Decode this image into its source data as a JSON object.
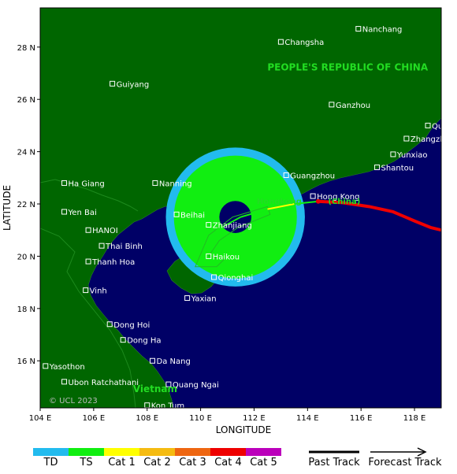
{
  "map": {
    "lon_range": [
      104,
      119
    ],
    "lat_range": [
      14.2,
      29.5
    ],
    "x_ticks": [
      104,
      106,
      108,
      110,
      112,
      114,
      116,
      118
    ],
    "y_ticks": [
      16,
      18,
      20,
      22,
      24,
      26,
      28
    ],
    "x_tick_labels": [
      "104 E",
      "106 E",
      "108 E",
      "110 E",
      "112 E",
      "114 E",
      "116 E",
      "118 E"
    ],
    "y_tick_labels": [
      "16 N",
      "18 N",
      "20 N",
      "22 N",
      "24 N",
      "26 N",
      "28 N"
    ],
    "xlabel": "LONGITUDE",
    "ylabel": "LATITUDE",
    "colors": {
      "sea": "#000066",
      "land": "#006600",
      "city_marker": "#ffffff"
    }
  },
  "regions": [
    {
      "label": "PEOPLE'S REPUBLIC OF CHINA",
      "lon": 115.5,
      "lat": 27.1
    },
    {
      "label": "Vietnam",
      "lon": 108.3,
      "lat": 14.8
    }
  ],
  "hk_label": {
    "label": "Hongkong",
    "suffix": "(China)",
    "lon": 112.1,
    "lat": 22.0
  },
  "cities": [
    {
      "name": "Nanchang",
      "lon": 115.9,
      "lat": 28.7
    },
    {
      "name": "Changsha",
      "lon": 113.0,
      "lat": 28.2
    },
    {
      "name": "Guiyang",
      "lon": 106.7,
      "lat": 26.6
    },
    {
      "name": "Ganzhou",
      "lon": 114.9,
      "lat": 25.8
    },
    {
      "name": "Quanzhou",
      "lon": 118.5,
      "lat": 25.0
    },
    {
      "name": "Zhangzhou",
      "lon": 117.7,
      "lat": 24.5
    },
    {
      "name": "Yunxiao",
      "lon": 117.2,
      "lat": 23.9
    },
    {
      "name": "Guangzhou",
      "lon": 113.2,
      "lat": 23.1
    },
    {
      "name": "Shantou",
      "lon": 116.6,
      "lat": 23.4
    },
    {
      "name": "Ha Giang",
      "lon": 104.9,
      "lat": 22.8
    },
    {
      "name": "Nanning",
      "lon": 108.3,
      "lat": 22.8
    },
    {
      "name": "Yen Bai",
      "lon": 104.9,
      "lat": 21.7
    },
    {
      "name": "Hong Kong",
      "lon": 114.2,
      "lat": 22.3
    },
    {
      "name": "Beihai",
      "lon": 109.1,
      "lat": 21.6
    },
    {
      "name": "Zhanjiang",
      "lon": 110.3,
      "lat": 21.2
    },
    {
      "name": "HANOI",
      "lon": 105.8,
      "lat": 21.0
    },
    {
      "name": "Thai Binh",
      "lon": 106.3,
      "lat": 20.4
    },
    {
      "name": "Haikou",
      "lon": 110.3,
      "lat": 20.0
    },
    {
      "name": "Thanh Hoa",
      "lon": 105.8,
      "lat": 19.8
    },
    {
      "name": "Qionghai",
      "lon": 110.5,
      "lat": 19.2
    },
    {
      "name": "Vinh",
      "lon": 105.7,
      "lat": 18.7
    },
    {
      "name": "Yaxian",
      "lon": 109.5,
      "lat": 18.4
    },
    {
      "name": "Dong Hoi",
      "lon": 106.6,
      "lat": 17.4
    },
    {
      "name": "Dong Ha",
      "lon": 107.1,
      "lat": 16.8
    },
    {
      "name": "Da Nang",
      "lon": 108.2,
      "lat": 16.0
    },
    {
      "name": "Yasothon",
      "lon": 104.2,
      "lat": 15.8
    },
    {
      "name": "Ubon Ratchathani",
      "lon": 104.9,
      "lat": 15.2
    },
    {
      "name": "Quang Ngai",
      "lon": 108.8,
      "lat": 15.1
    },
    {
      "name": "Kon Tum",
      "lon": 108.0,
      "lat": 14.3
    }
  ],
  "storm": {
    "track": [
      {
        "lon": 119.0,
        "lat": 21.0
      },
      {
        "lon": 118.6,
        "lat": 21.1
      },
      {
        "lon": 118.0,
        "lat": 21.35
      },
      {
        "lon": 117.2,
        "lat": 21.7
      },
      {
        "lon": 116.3,
        "lat": 21.9
      },
      {
        "lon": 115.3,
        "lat": 22.05
      },
      {
        "lon": 114.4,
        "lat": 22.1
      }
    ],
    "forecast": [
      {
        "lon": 114.4,
        "lat": 22.1,
        "cat": "TS"
      },
      {
        "lon": 113.5,
        "lat": 22.0,
        "cat": "Cat 1"
      },
      {
        "lon": 112.5,
        "lat": 21.8,
        "cat": "TS"
      },
      {
        "lon": 111.5,
        "lat": 21.5,
        "cat": "TS"
      },
      {
        "lon": 110.6,
        "lat": 21.0,
        "cat": "TS"
      },
      {
        "lon": 110.2,
        "lat": 20.3,
        "cat": "TS"
      }
    ],
    "cone": [
      {
        "lon": 110.3,
        "lat": 20.0
      },
      {
        "lon": 110.7,
        "lat": 20.6
      },
      {
        "lon": 111.4,
        "lat": 21.1
      },
      {
        "lon": 112.6,
        "lat": 21.6
      },
      {
        "lon": 112.5,
        "lat": 21.9
      },
      {
        "lon": 111.2,
        "lat": 21.5
      },
      {
        "lon": 110.3,
        "lat": 20.8
      },
      {
        "lon": 109.8,
        "lat": 19.6
      },
      {
        "lon": 110.6,
        "lat": 19.6
      },
      {
        "lon": 110.9,
        "lat": 19.9
      }
    ],
    "wind_field": {
      "center": {
        "lon": 111.3,
        "lat": 21.5
      },
      "ts_radius_deg": 2.3,
      "td_radius_deg": 2.6,
      "eye_radius_deg": 0.6
    },
    "current_position": {
      "lon": 114.4,
      "lat": 22.1
    }
  },
  "legend": {
    "categories": [
      {
        "label": "TD",
        "color": "#22bbee"
      },
      {
        "label": "TS",
        "color": "#11ee11"
      },
      {
        "label": "Cat 1",
        "color": "#ffff00"
      },
      {
        "label": "Cat 2",
        "color": "#f5bb11"
      },
      {
        "label": "Cat 3",
        "color": "#ee6611"
      },
      {
        "label": "Cat 4",
        "color": "#ee0000"
      },
      {
        "label": "Cat 5",
        "color": "#bb00bb"
      }
    ],
    "past_track_label": "Past Track",
    "forecast_track_label": "Forecast Track"
  },
  "copyright": "© UCL 2023"
}
